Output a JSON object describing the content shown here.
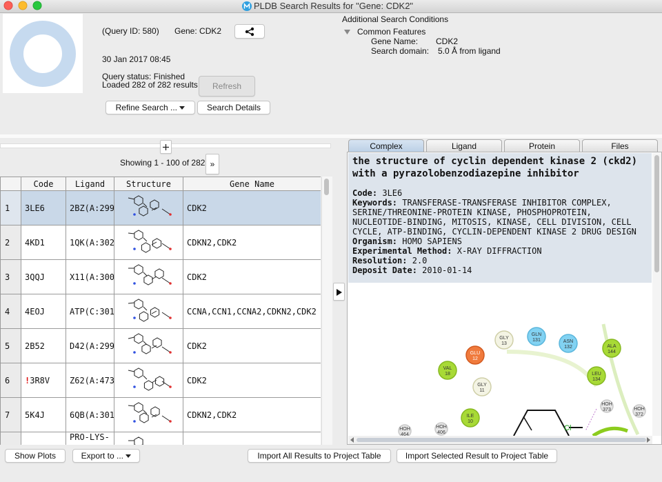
{
  "window_title": "PLDB Search Results for \"Gene: CDK2\"",
  "query": {
    "id": "(Query ID: 580)",
    "gene": "Gene: CDK2",
    "date": "30 Jan 2017 08:45",
    "status": "Query status: Finished",
    "loaded": "Loaded 282 of 282 results"
  },
  "buttons": {
    "refresh": "Refresh",
    "refine": "Refine Search ...",
    "search_details": "Search Details",
    "show_plots": "Show Plots",
    "export": "Export to ...",
    "import_all": "Import All Results to Project Table",
    "import_selected": "Import Selected Result to Project Table"
  },
  "conditions": {
    "title": "Additional Search Conditions",
    "group": "Common Features",
    "fields": [
      {
        "label": "Gene Name:",
        "value": "CDK2"
      },
      {
        "label": "Search domain:",
        "value": "5.0 Å from ligand"
      }
    ]
  },
  "table": {
    "showing": "Showing 1 - 100 of 282",
    "next": "»",
    "columns": [
      "Code",
      "Ligand",
      "Structure",
      "Gene Name"
    ],
    "rows": [
      {
        "index": "1",
        "code": "3LE6",
        "ligand": "2BZ(A:299)",
        "gene": "CDK2"
      },
      {
        "index": "2",
        "code": "4KD1",
        "ligand": "1QK(A:302)",
        "gene": "CDKN2,CDK2"
      },
      {
        "index": "3",
        "code": "3QQJ",
        "ligand": "X11(A:300)",
        "gene": "CDK2"
      },
      {
        "index": "4",
        "code": "4EOJ",
        "ligand": "ATP(C:301)",
        "gene": "CCNA,CCN1,CCNA2,CDKN2,CDK2"
      },
      {
        "index": "5",
        "code": "2B52",
        "ligand": "D42(A:299)",
        "gene": "CDK2"
      },
      {
        "index": "6",
        "flag": "!",
        "code": "3R8V",
        "ligand": "Z62(A:473)",
        "gene": "CDK2"
      },
      {
        "index": "7",
        "code": "5K4J",
        "ligand": "6QB(A:301)",
        "gene": "CDKN2,CDK2"
      },
      {
        "ligand": "PRO-LYS-"
      }
    ]
  },
  "tabs": [
    "Complex",
    "Ligand",
    "Protein",
    "Files"
  ],
  "detail": {
    "title": "the structure of cyclin dependent kinase 2 (ckd2) with a pyrazolobenzodiazepine inhibitor",
    "fields": [
      {
        "label": "Code:",
        "value": "3LE6"
      },
      {
        "label": "Keywords:",
        "value": "TRANSFERASE-TRANSFERASE INHIBITOR COMPLEX, SERINE/THREONINE-PROTEIN KINASE, PHOSPHOPROTEIN, NUCLEOTIDE-BINDING, MITOSIS, KINASE, CELL DIVISION, CELL CYCLE, ATP-BINDING, CYCLIN-DEPENDENT KINASE 2 DRUG DESIGN"
      },
      {
        "label": "Organism:",
        "value": "HOMO SAPIENS"
      },
      {
        "label": "Experimental Method:",
        "value": "X-RAY DIFFRACTION"
      },
      {
        "label": "Resolution:",
        "value": "2.0"
      },
      {
        "label": "Deposit Date:",
        "value": "2010-01-14"
      }
    ]
  },
  "diagram": {
    "atom": "Cl",
    "residues": [
      {
        "name": "GLY",
        "number": "13"
      },
      {
        "name": "GLN",
        "number": "131"
      },
      {
        "name": "ASN",
        "number": "132"
      },
      {
        "name": "ALA",
        "number": "144"
      },
      {
        "name": "GLU",
        "number": "12"
      },
      {
        "name": "VAL",
        "number": "18"
      },
      {
        "name": "LEU",
        "number": "134"
      },
      {
        "name": "GLY",
        "number": "11"
      },
      {
        "name": "ILE",
        "number": "10"
      },
      {
        "name": "HOH",
        "number": "373"
      },
      {
        "name": "HOH",
        "number": "372"
      },
      {
        "name": "HOH",
        "number": "464"
      },
      {
        "name": "HOH",
        "number": "406"
      }
    ]
  }
}
